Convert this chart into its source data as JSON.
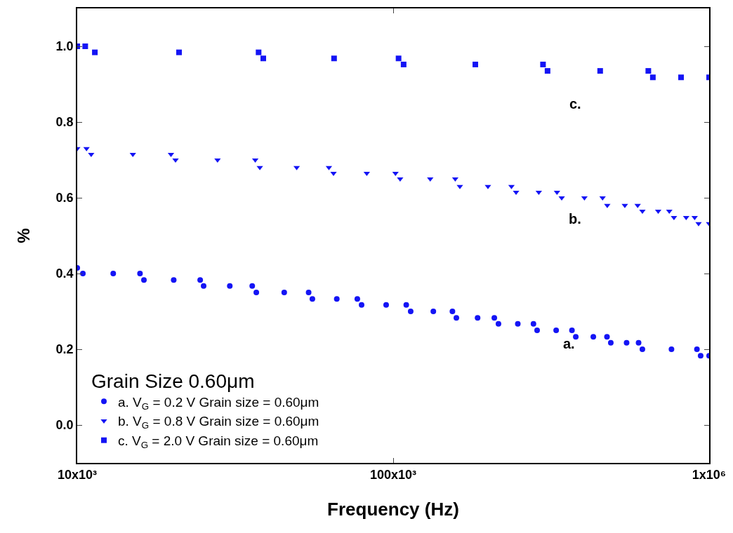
{
  "chart_data": {
    "type": "scatter",
    "xlabel": "Frequency (Hz)",
    "ylabel": "%",
    "log": "x",
    "legend": "bottom left",
    "legend_title": "Grain Size 0.60μm",
    "xlim": [
      10000,
      1000000
    ],
    "xticks": [
      {
        "value": 10000,
        "label": "10x10³"
      },
      {
        "value": 100000,
        "label": "100x10³"
      },
      {
        "value": 1000000,
        "label": "1x10⁶"
      }
    ],
    "ylim": [
      -0.1,
      1.1
    ],
    "yticks": [
      {
        "value": 0,
        "label": "0.0"
      },
      {
        "value": 0.2,
        "label": "0.2"
      },
      {
        "value": 0.4,
        "label": "0.4"
      },
      {
        "value": 0.6,
        "label": "0.6"
      },
      {
        "value": 0.8,
        "label": "0.8"
      },
      {
        "value": 1.0,
        "label": "1.0"
      }
    ],
    "annotations": [
      "a.",
      "b.",
      "c."
    ],
    "series": [
      {
        "name": "a. V$_{G}$ = 0.2 V Grain size = 0.60μm",
        "color": "#1414f5",
        "marker": "circle",
        "x": [
          10000,
          10420,
          13000,
          15800,
          16260,
          20200,
          24500,
          25120,
          30400,
          35800,
          36880,
          45200,
          54000,
          55500,
          66300,
          77000,
          79430,
          95000,
          110000,
          113600,
          134000,
          154000,
          158500,
          185000,
          209000,
          215400,
          248000,
          278000,
          285500,
          328000,
          368000,
          378400,
          430000,
          475000,
          488400,
          548000,
          598000,
          614900,
          760000,
          915000,
          940000,
          1000000
        ],
        "values": [
          0.415,
          0.4,
          0.4,
          0.4,
          0.383,
          0.383,
          0.383,
          0.367,
          0.367,
          0.367,
          0.35,
          0.35,
          0.35,
          0.333,
          0.333,
          0.333,
          0.317,
          0.317,
          0.317,
          0.3,
          0.3,
          0.3,
          0.283,
          0.283,
          0.283,
          0.267,
          0.267,
          0.267,
          0.25,
          0.25,
          0.25,
          0.233,
          0.233,
          0.233,
          0.217,
          0.217,
          0.217,
          0.2,
          0.2,
          0.2,
          0.183,
          0.183
        ]
      },
      {
        "name": "b. V$_{G}$ = 0.8 V Grain size = 0.60μm",
        "color": "#1414f5",
        "marker": "triangle",
        "x": [
          10000,
          10700,
          11070,
          15000,
          19800,
          20470,
          27800,
          36600,
          37840,
          49500,
          62600,
          64740,
          82500,
          101700,
          105200,
          131000,
          157200,
          162600,
          199500,
          236800,
          244900,
          289000,
          330000,
          341500,
          403000,
          460000,
          476000,
          541000,
          594000,
          614900,
          690000,
          748000,
          773900,
          846000,
          900000,
          926000,
          1000000
        ],
        "values": [
          0.73,
          0.73,
          0.715,
          0.715,
          0.715,
          0.7,
          0.7,
          0.7,
          0.68,
          0.68,
          0.68,
          0.665,
          0.665,
          0.665,
          0.65,
          0.65,
          0.65,
          0.63,
          0.63,
          0.63,
          0.615,
          0.615,
          0.615,
          0.6,
          0.6,
          0.6,
          0.58,
          0.58,
          0.58,
          0.565,
          0.565,
          0.565,
          0.548,
          0.548,
          0.548,
          0.532,
          0.532
        ]
      },
      {
        "name": "c. V$_{G}$ = 2.0 V Grain size = 0.60μm",
        "color": "#1414f5",
        "marker": "square",
        "x": [
          10000,
          10600,
          11370,
          21000,
          37500,
          38810,
          65000,
          104000,
          107900,
          182000,
          298000,
          308000,
          452000,
          642000,
          663600,
          815000,
          1000000
        ],
        "values": [
          1.0,
          1.0,
          0.984,
          0.984,
          0.984,
          0.968,
          0.968,
          0.968,
          0.952,
          0.952,
          0.952,
          0.935,
          0.935,
          0.935,
          0.918,
          0.918,
          0.918
        ]
      }
    ]
  }
}
